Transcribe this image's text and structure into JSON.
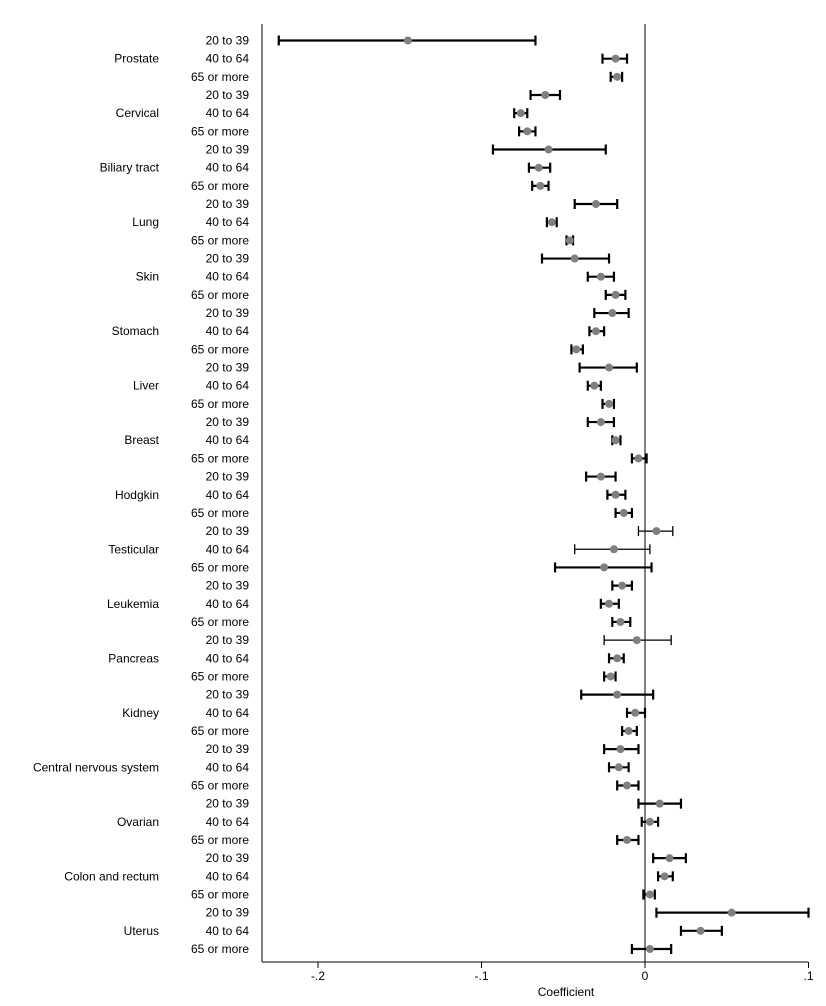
{
  "chart_data": {
    "type": "forest",
    "title": "",
    "xlabel": "Coefficient",
    "ylabel": "",
    "xlim": [
      -0.233,
      0.101
    ],
    "xticks": [
      -0.2,
      -0.1,
      0,
      0.1
    ],
    "xtick_labels": [
      "-.2",
      "-.1",
      "0",
      ".1"
    ],
    "reference_line": 0,
    "point_color": "#7f7f7f",
    "line_color": "#000000",
    "age_groups": [
      "20 to 39",
      "40 to 64",
      "65 or more"
    ],
    "cancers": [
      {
        "name": "Prostate",
        "estimates": [
          {
            "age": "20 to 39",
            "coef": -0.145,
            "lo": -0.224,
            "hi": -0.067,
            "thick": true
          },
          {
            "age": "40 to 64",
            "coef": -0.018,
            "lo": -0.026,
            "hi": -0.011,
            "thick": true
          },
          {
            "age": "65 or more",
            "coef": -0.017,
            "lo": -0.021,
            "hi": -0.014,
            "thick": true
          }
        ]
      },
      {
        "name": "Cervical",
        "estimates": [
          {
            "age": "20 to 39",
            "coef": -0.061,
            "lo": -0.07,
            "hi": -0.052,
            "thick": true
          },
          {
            "age": "40 to 64",
            "coef": -0.076,
            "lo": -0.08,
            "hi": -0.072,
            "thick": true
          },
          {
            "age": "65 or more",
            "coef": -0.072,
            "lo": -0.077,
            "hi": -0.067,
            "thick": true
          }
        ]
      },
      {
        "name": "Biliary tract",
        "estimates": [
          {
            "age": "20 to 39",
            "coef": -0.059,
            "lo": -0.093,
            "hi": -0.024,
            "thick": true
          },
          {
            "age": "40 to 64",
            "coef": -0.065,
            "lo": -0.071,
            "hi": -0.058,
            "thick": true
          },
          {
            "age": "65 or more",
            "coef": -0.064,
            "lo": -0.069,
            "hi": -0.059,
            "thick": true
          }
        ]
      },
      {
        "name": "Lung",
        "estimates": [
          {
            "age": "20 to 39",
            "coef": -0.03,
            "lo": -0.043,
            "hi": -0.017,
            "thick": true
          },
          {
            "age": "40 to 64",
            "coef": -0.057,
            "lo": -0.06,
            "hi": -0.054,
            "thick": true
          },
          {
            "age": "65 or more",
            "coef": -0.046,
            "lo": -0.048,
            "hi": -0.044,
            "thick": true
          }
        ]
      },
      {
        "name": "Skin",
        "estimates": [
          {
            "age": "20 to 39",
            "coef": -0.043,
            "lo": -0.063,
            "hi": -0.022,
            "thick": true
          },
          {
            "age": "40 to 64",
            "coef": -0.027,
            "lo": -0.035,
            "hi": -0.019,
            "thick": true
          },
          {
            "age": "65 or more",
            "coef": -0.018,
            "lo": -0.024,
            "hi": -0.012,
            "thick": true
          }
        ]
      },
      {
        "name": "Stomach",
        "estimates": [
          {
            "age": "20 to 39",
            "coef": -0.02,
            "lo": -0.031,
            "hi": -0.01,
            "thick": true
          },
          {
            "age": "40 to 64",
            "coef": -0.03,
            "lo": -0.034,
            "hi": -0.025,
            "thick": true
          },
          {
            "age": "65 or more",
            "coef": -0.042,
            "lo": -0.045,
            "hi": -0.038,
            "thick": true
          }
        ]
      },
      {
        "name": "Liver",
        "estimates": [
          {
            "age": "20 to 39",
            "coef": -0.022,
            "lo": -0.04,
            "hi": -0.005,
            "thick": true
          },
          {
            "age": "40 to 64",
            "coef": -0.031,
            "lo": -0.035,
            "hi": -0.027,
            "thick": true
          },
          {
            "age": "65 or more",
            "coef": -0.022,
            "lo": -0.026,
            "hi": -0.019,
            "thick": true
          }
        ]
      },
      {
        "name": "Breast",
        "estimates": [
          {
            "age": "20 to 39",
            "coef": -0.027,
            "lo": -0.035,
            "hi": -0.019,
            "thick": true
          },
          {
            "age": "40 to 64",
            "coef": -0.018,
            "lo": -0.02,
            "hi": -0.015,
            "thick": true
          },
          {
            "age": "65 or more",
            "coef": -0.004,
            "lo": -0.008,
            "hi": 0.001,
            "thick": true
          }
        ]
      },
      {
        "name": "Hodgkin",
        "estimates": [
          {
            "age": "20 to 39",
            "coef": -0.027,
            "lo": -0.036,
            "hi": -0.018,
            "thick": true
          },
          {
            "age": "40 to 64",
            "coef": -0.018,
            "lo": -0.023,
            "hi": -0.012,
            "thick": true
          },
          {
            "age": "65 or more",
            "coef": -0.013,
            "lo": -0.018,
            "hi": -0.008,
            "thick": true
          }
        ]
      },
      {
        "name": "Testicular",
        "estimates": [
          {
            "age": "20 to 39",
            "coef": 0.007,
            "lo": -0.004,
            "hi": 0.017,
            "thick": false
          },
          {
            "age": "40 to 64",
            "coef": -0.019,
            "lo": -0.043,
            "hi": 0.003,
            "thick": false
          },
          {
            "age": "65 or more",
            "coef": -0.025,
            "lo": -0.055,
            "hi": 0.004,
            "thick": true
          }
        ]
      },
      {
        "name": "Leukemia",
        "estimates": [
          {
            "age": "20 to 39",
            "coef": -0.014,
            "lo": -0.02,
            "hi": -0.008,
            "thick": true
          },
          {
            "age": "40 to 64",
            "coef": -0.022,
            "lo": -0.027,
            "hi": -0.016,
            "thick": true
          },
          {
            "age": "65 or more",
            "coef": -0.015,
            "lo": -0.02,
            "hi": -0.009,
            "thick": true
          }
        ]
      },
      {
        "name": "Pancreas",
        "estimates": [
          {
            "age": "20 to 39",
            "coef": -0.005,
            "lo": -0.025,
            "hi": 0.016,
            "thick": false
          },
          {
            "age": "40 to 64",
            "coef": -0.017,
            "lo": -0.022,
            "hi": -0.013,
            "thick": true
          },
          {
            "age": "65 or more",
            "coef": -0.021,
            "lo": -0.025,
            "hi": -0.018,
            "thick": true
          }
        ]
      },
      {
        "name": "Kidney",
        "estimates": [
          {
            "age": "20 to 39",
            "coef": -0.017,
            "lo": -0.039,
            "hi": 0.005,
            "thick": true
          },
          {
            "age": "40 to 64",
            "coef": -0.006,
            "lo": -0.011,
            "hi": 0.0,
            "thick": true
          },
          {
            "age": "65 or more",
            "coef": -0.01,
            "lo": -0.014,
            "hi": -0.005,
            "thick": true
          }
        ]
      },
      {
        "name": "Central nervous system",
        "estimates": [
          {
            "age": "20 to 39",
            "coef": -0.015,
            "lo": -0.025,
            "hi": -0.004,
            "thick": true
          },
          {
            "age": "40 to 64",
            "coef": -0.016,
            "lo": -0.022,
            "hi": -0.01,
            "thick": true
          },
          {
            "age": "65 or more",
            "coef": -0.011,
            "lo": -0.017,
            "hi": -0.004,
            "thick": true
          }
        ]
      },
      {
        "name": "Ovarian",
        "estimates": [
          {
            "age": "20 to 39",
            "coef": 0.009,
            "lo": -0.004,
            "hi": 0.022,
            "thick": true
          },
          {
            "age": "40 to 64",
            "coef": 0.003,
            "lo": -0.002,
            "hi": 0.008,
            "thick": true
          },
          {
            "age": "65 or more",
            "coef": -0.011,
            "lo": -0.017,
            "hi": -0.004,
            "thick": true
          }
        ]
      },
      {
        "name": "Colon and rectum",
        "estimates": [
          {
            "age": "20 to 39",
            "coef": 0.015,
            "lo": 0.005,
            "hi": 0.025,
            "thick": true
          },
          {
            "age": "40 to 64",
            "coef": 0.012,
            "lo": 0.008,
            "hi": 0.017,
            "thick": true
          },
          {
            "age": "65 or more",
            "coef": 0.003,
            "lo": -0.001,
            "hi": 0.006,
            "thick": true
          }
        ]
      },
      {
        "name": "Uterus",
        "estimates": [
          {
            "age": "20 to 39",
            "coef": 0.053,
            "lo": 0.007,
            "hi": 0.1,
            "thick": true
          },
          {
            "age": "40 to 64",
            "coef": 0.034,
            "lo": 0.022,
            "hi": 0.047,
            "thick": true
          },
          {
            "age": "65 or more",
            "coef": 0.003,
            "lo": -0.008,
            "hi": 0.016,
            "thick": true
          }
        ]
      }
    ]
  }
}
